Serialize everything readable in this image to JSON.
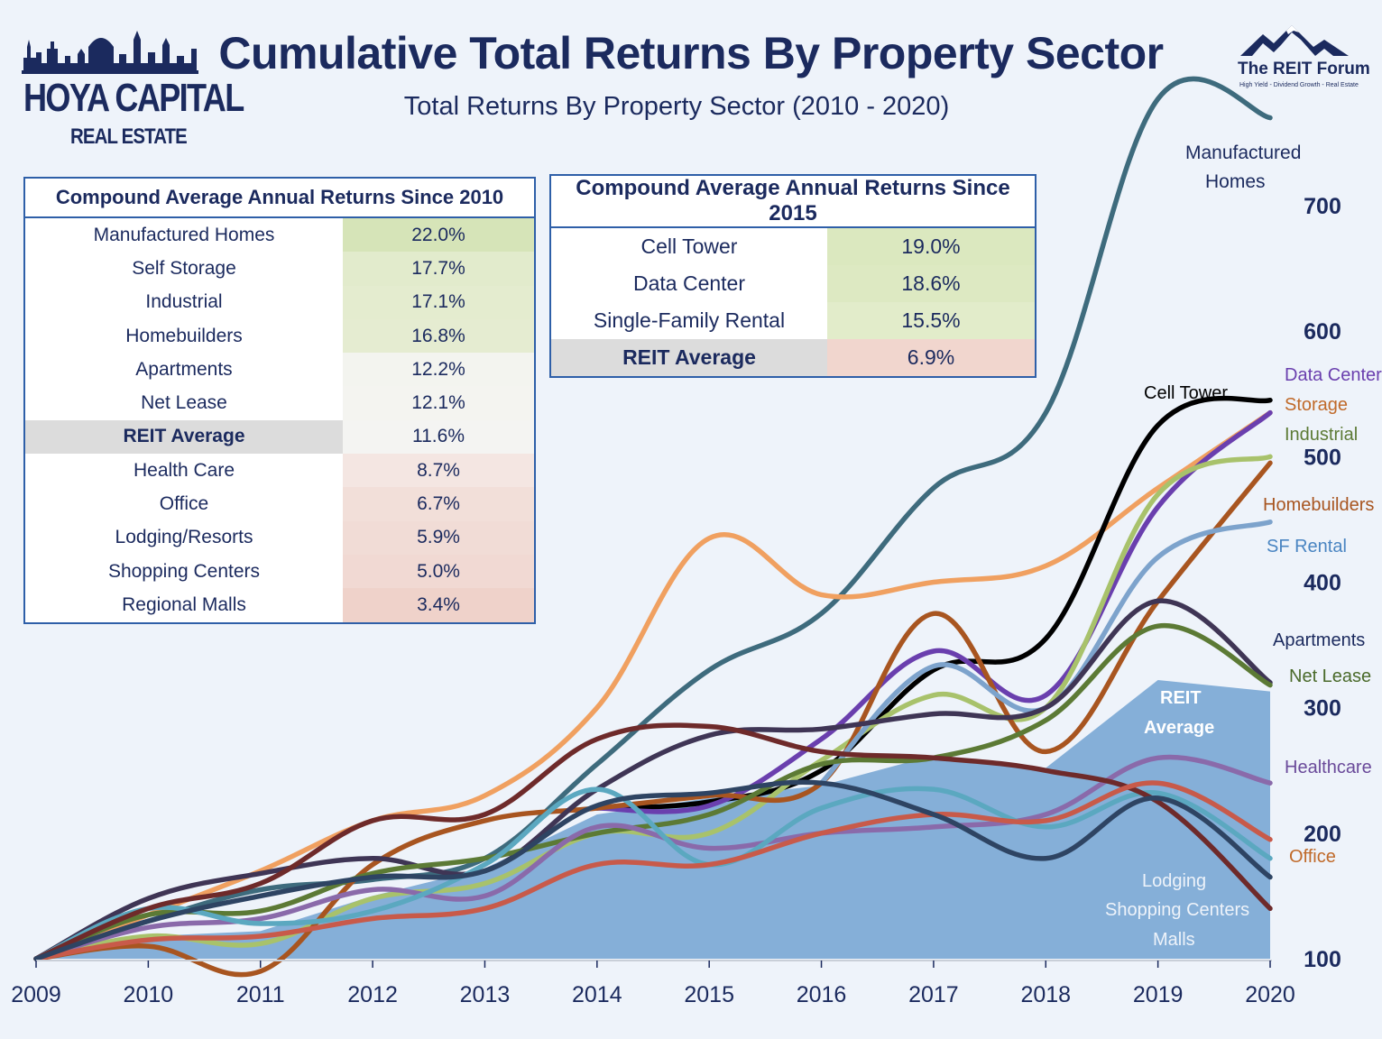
{
  "header": {
    "title": "Cumulative Total Returns By Property Sector",
    "subtitle": "Total Returns By Property Sector (2010 - 2020)",
    "logo_left_line1": "HOYA CAPITAL",
    "logo_left_line2": "REAL ESTATE",
    "logo_right_name": "The REIT Forum",
    "logo_right_tagline": "High Yield - Dividend Growth - Real Estate"
  },
  "table_since_2010": {
    "title": "Compound Average Annual Returns Since 2010",
    "rows": [
      {
        "label": "Manufactured Homes",
        "value": "22.0%",
        "color": "#d6e4b8"
      },
      {
        "label": "Self Storage",
        "value": "17.7%",
        "color": "#e2ebcc"
      },
      {
        "label": "Industrial",
        "value": "17.1%",
        "color": "#e4eccf"
      },
      {
        "label": "Homebuilders",
        "value": "16.8%",
        "color": "#e5ecd1"
      },
      {
        "label": "Apartments",
        "value": "12.2%",
        "color": "#f3f4ef"
      },
      {
        "label": "Net Lease",
        "value": "12.1%",
        "color": "#f4f4f0"
      },
      {
        "label": "REIT Average",
        "value": "11.6%",
        "color": "#f4f4f2",
        "highlight": true
      },
      {
        "label": "Health Care",
        "value": "8.7%",
        "color": "#f4e6e2"
      },
      {
        "label": "Office",
        "value": "6.7%",
        "color": "#f2dfd9"
      },
      {
        "label": "Lodging/Resorts",
        "value": "5.9%",
        "color": "#f1dcd6"
      },
      {
        "label": "Shopping Centers",
        "value": "5.0%",
        "color": "#f1d9d3"
      },
      {
        "label": "Regional Malls",
        "value": "3.4%",
        "color": "#efd2ca"
      }
    ]
  },
  "table_since_2015": {
    "title": "Compound Average Annual Returns Since 2015",
    "rows": [
      {
        "label": "Cell Tower",
        "value": "19.0%",
        "color": "#dbe8bf"
      },
      {
        "label": "Data Center",
        "value": "18.6%",
        "color": "#dde9c2"
      },
      {
        "label": "Single-Family Rental",
        "value": "15.5%",
        "color": "#e2ecca"
      },
      {
        "label": "REIT Average",
        "value": "6.9%",
        "color": "#f1d6ce",
        "highlight": true
      }
    ]
  },
  "chart_data": {
    "type": "line",
    "x_ticks": [
      "2009",
      "2010",
      "2011",
      "2012",
      "2013",
      "2014",
      "2015",
      "2016",
      "2017",
      "2018",
      "2019",
      "2020"
    ],
    "y_ticks": [
      "100",
      "200",
      "300",
      "400",
      "500",
      "600",
      "700"
    ],
    "xlim": [
      2009,
      2020
    ],
    "ylim": [
      100,
      800
    ],
    "area": {
      "name": "REIT Average",
      "color": "#85afd8",
      "points": [
        [
          2009,
          100
        ],
        [
          2010,
          118
        ],
        [
          2011,
          122
        ],
        [
          2012,
          150
        ],
        [
          2013,
          172
        ],
        [
          2014,
          215
        ],
        [
          2015,
          228
        ],
        [
          2016,
          238
        ],
        [
          2017,
          262
        ],
        [
          2018,
          252
        ],
        [
          2019,
          322
        ],
        [
          2020,
          313
        ]
      ]
    },
    "series": [
      {
        "name": "Manufactured Homes",
        "color": "#3e6b7d",
        "points": [
          [
            2009,
            100
          ],
          [
            2010,
            130
          ],
          [
            2011,
            155
          ],
          [
            2012,
            163
          ],
          [
            2013,
            180
          ],
          [
            2014,
            255
          ],
          [
            2015,
            330
          ],
          [
            2016,
            375
          ],
          [
            2017,
            475
          ],
          [
            2018,
            535
          ],
          [
            2019,
            785
          ],
          [
            2020,
            770
          ]
        ]
      },
      {
        "name": "Self Storage",
        "color": "#f0a060",
        "points": [
          [
            2009,
            100
          ],
          [
            2010,
            135
          ],
          [
            2011,
            170
          ],
          [
            2012,
            210
          ],
          [
            2013,
            230
          ],
          [
            2014,
            300
          ],
          [
            2015,
            435
          ],
          [
            2016,
            390
          ],
          [
            2017,
            400
          ],
          [
            2018,
            413
          ],
          [
            2019,
            475
          ],
          [
            2020,
            535
          ]
        ]
      },
      {
        "name": "Cell Tower",
        "color": "#000000",
        "points": [
          [
            2014,
            220
          ],
          [
            2015,
            225
          ],
          [
            2016,
            250
          ],
          [
            2017,
            330
          ],
          [
            2018,
            355
          ],
          [
            2019,
            525
          ],
          [
            2020,
            545
          ]
        ]
      },
      {
        "name": "Data Center",
        "color": "#6a3fae",
        "points": [
          [
            2014,
            220
          ],
          [
            2015,
            222
          ],
          [
            2016,
            275
          ],
          [
            2017,
            345
          ],
          [
            2018,
            310
          ],
          [
            2019,
            460
          ],
          [
            2020,
            535
          ]
        ]
      },
      {
        "name": "Industrial",
        "color": "#a8c26b",
        "points": [
          [
            2009,
            100
          ],
          [
            2010,
            118
          ],
          [
            2011,
            112
          ],
          [
            2012,
            148
          ],
          [
            2013,
            160
          ],
          [
            2014,
            200
          ],
          [
            2015,
            200
          ],
          [
            2016,
            258
          ],
          [
            2017,
            310
          ],
          [
            2018,
            300
          ],
          [
            2019,
            470
          ],
          [
            2020,
            500
          ]
        ]
      },
      {
        "name": "Homebuilders",
        "color": "#a85520",
        "points": [
          [
            2009,
            100
          ],
          [
            2010,
            110
          ],
          [
            2011,
            90
          ],
          [
            2012,
            175
          ],
          [
            2013,
            210
          ],
          [
            2014,
            220
          ],
          [
            2015,
            230
          ],
          [
            2016,
            240
          ],
          [
            2017,
            375
          ],
          [
            2018,
            265
          ],
          [
            2019,
            385
          ],
          [
            2020,
            495
          ]
        ]
      },
      {
        "name": "SF Rental",
        "color": "#7da3cc",
        "points": [
          [
            2016,
            240
          ],
          [
            2017,
            333
          ],
          [
            2018,
            300
          ],
          [
            2019,
            420
          ],
          [
            2020,
            448
          ]
        ]
      },
      {
        "name": "Apartments",
        "color": "#3f3555",
        "points": [
          [
            2009,
            100
          ],
          [
            2010,
            148
          ],
          [
            2011,
            168
          ],
          [
            2012,
            180
          ],
          [
            2013,
            170
          ],
          [
            2014,
            235
          ],
          [
            2015,
            278
          ],
          [
            2016,
            283
          ],
          [
            2017,
            295
          ],
          [
            2018,
            300
          ],
          [
            2019,
            385
          ],
          [
            2020,
            320
          ]
        ]
      },
      {
        "name": "Net Lease",
        "color": "#5c7a35",
        "points": [
          [
            2009,
            100
          ],
          [
            2010,
            135
          ],
          [
            2011,
            138
          ],
          [
            2012,
            168
          ],
          [
            2013,
            180
          ],
          [
            2014,
            200
          ],
          [
            2015,
            215
          ],
          [
            2016,
            255
          ],
          [
            2017,
            260
          ],
          [
            2018,
            290
          ],
          [
            2019,
            365
          ],
          [
            2020,
            318
          ]
        ]
      },
      {
        "name": "Healthcare",
        "color": "#8a6aaa",
        "points": [
          [
            2009,
            100
          ],
          [
            2010,
            125
          ],
          [
            2011,
            132
          ],
          [
            2012,
            155
          ],
          [
            2013,
            150
          ],
          [
            2014,
            205
          ],
          [
            2015,
            188
          ],
          [
            2016,
            200
          ],
          [
            2017,
            205
          ],
          [
            2018,
            215
          ],
          [
            2019,
            260
          ],
          [
            2020,
            240
          ]
        ]
      },
      {
        "name": "Office",
        "color": "#5ba8c0",
        "points": [
          [
            2009,
            100
          ],
          [
            2010,
            140
          ],
          [
            2011,
            128
          ],
          [
            2012,
            138
          ],
          [
            2013,
            175
          ],
          [
            2014,
            235
          ],
          [
            2015,
            175
          ],
          [
            2016,
            220
          ],
          [
            2017,
            235
          ],
          [
            2018,
            205
          ],
          [
            2019,
            232
          ],
          [
            2020,
            180
          ]
        ]
      },
      {
        "name": "Lodging",
        "color": "#6e2a2a",
        "points": [
          [
            2009,
            100
          ],
          [
            2010,
            140
          ],
          [
            2011,
            160
          ],
          [
            2012,
            210
          ],
          [
            2013,
            215
          ],
          [
            2014,
            275
          ],
          [
            2015,
            285
          ],
          [
            2016,
            265
          ],
          [
            2017,
            260
          ],
          [
            2018,
            250
          ],
          [
            2019,
            225
          ],
          [
            2020,
            140
          ]
        ]
      },
      {
        "name": "Shopping Centers",
        "color": "#c85a4a",
        "points": [
          [
            2009,
            100
          ],
          [
            2010,
            115
          ],
          [
            2011,
            118
          ],
          [
            2012,
            132
          ],
          [
            2013,
            140
          ],
          [
            2014,
            175
          ],
          [
            2015,
            175
          ],
          [
            2016,
            200
          ],
          [
            2017,
            215
          ],
          [
            2018,
            210
          ],
          [
            2019,
            240
          ],
          [
            2020,
            195
          ]
        ]
      },
      {
        "name": "Malls",
        "color": "#2e4463",
        "points": [
          [
            2009,
            100
          ],
          [
            2010,
            130
          ],
          [
            2011,
            150
          ],
          [
            2012,
            165
          ],
          [
            2013,
            170
          ],
          [
            2014,
            222
          ],
          [
            2015,
            232
          ],
          [
            2016,
            240
          ],
          [
            2017,
            215
          ],
          [
            2018,
            180
          ],
          [
            2019,
            228
          ],
          [
            2020,
            165
          ]
        ]
      }
    ],
    "labels": {
      "manufactured_line1": "Manufactured",
      "manufactured_line2": "Homes",
      "cell_tower": "Cell Tower",
      "data_center": "Data Center",
      "storage": "Storage",
      "industrial": "Industrial",
      "homebuilders": "Homebuilders",
      "sf_rental": "SF Rental",
      "apartments": "Apartments",
      "net_lease": "Net Lease",
      "healthcare": "Healthcare",
      "office": "Office",
      "reit_line1": "REIT",
      "reit_line2": "Average",
      "lodging": "Lodging",
      "shopping": "Shopping Centers",
      "malls": "Malls"
    }
  }
}
